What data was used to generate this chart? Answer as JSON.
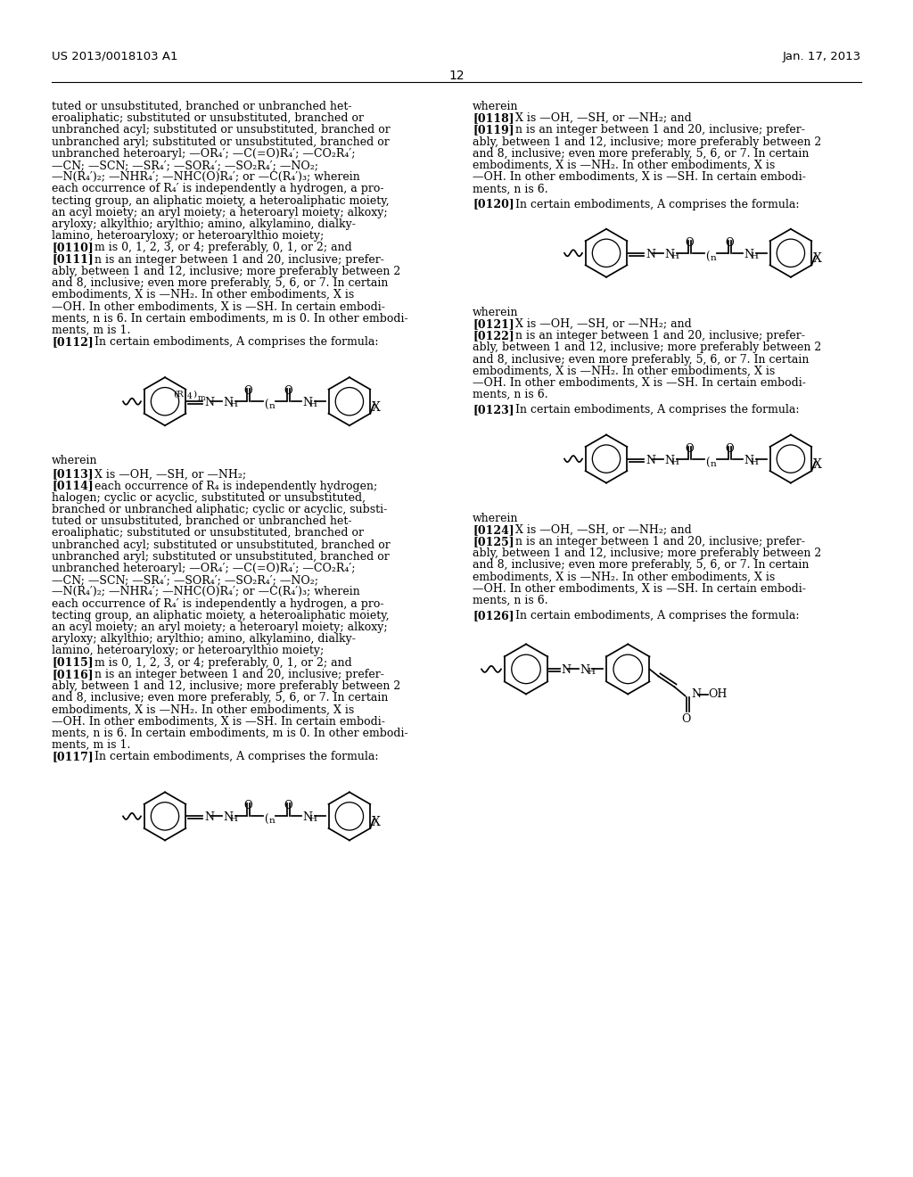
{
  "page_number": "12",
  "patent_number": "US 2013/0018103 A1",
  "patent_date": "Jan. 17, 2013",
  "background_color": "#ffffff",
  "left_col_lines": [
    "tuted or unsubstituted, branched or unbranched het-",
    "eroaliphatic; substituted or unsubstituted, branched or",
    "unbranched acyl; substituted or unsubstituted, branched or",
    "unbranched aryl; substituted or unsubstituted, branched or",
    "unbranched heteroaryl; —OR₄′; —C(=O)R₄′; —CO₂R₄′;",
    "—CN; —SCN; —SR₄′; —SOR₄′; —SO₂R₄′; —NO₂;",
    "—N(R₄′)₂; —NHR₄′; —NHC(O)R₄′; or —C(R₄′)₃; wherein",
    "each occurrence of R₄′ is independently a hydrogen, a pro-",
    "tecting group, an aliphatic moiety, a heteroaliphatic moiety,",
    "an acyl moiety; an aryl moiety; a heteroaryl moiety; alkoxy;",
    "aryloxy; alkylthio; arylthio; amino, alkylamino, dialky-",
    "lamino, heteroaryloxy; or heteroarylthio moiety;",
    "[0110]    m is 0, 1, 2, 3, or 4; preferably, 0, 1, or 2; and",
    "[0111]    n is an integer between 1 and 20, inclusive; prefer-",
    "ably, between 1 and 12, inclusive; more preferably between 2",
    "and 8, inclusive; even more preferably, 5, 6, or 7. In certain",
    "embodiments, X is —NH₂. In other embodiments, X is",
    "—OH. In other embodiments, X is —SH. In certain embodi-",
    "ments, n is 6. In certain embodiments, m is 0. In other embodi-",
    "ments, m is 1.",
    "[0112]    In certain embodiments, A comprises the formula:"
  ],
  "left_col_lower_lines": [
    "wherein",
    "[0113]    X is —OH, —SH, or —NH₂;",
    "[0114]    each occurrence of R₄ is independently hydrogen;",
    "halogen; cyclic or acyclic, substituted or unsubstituted,",
    "branched or unbranched aliphatic; cyclic or acyclic, substi-",
    "tuted or unsubstituted, branched or unbranched het-",
    "eroaliphatic; substituted or unsubstituted, branched or",
    "unbranched acyl; substituted or unsubstituted, branched or",
    "unbranched aryl; substituted or unsubstituted, branched or",
    "unbranched heteroaryl; —OR₄′; —C(=O)R₄′; —CO₂R₄′;",
    "—CN; —SCN; —SR₄′; —SOR₄′; —SO₂R₄′; —NO₂;",
    "—N(R₄′)₂; —NHR₄′; —NHC(O)R₄′; or —C(R₄′)₃; wherein",
    "each occurrence of R₄′ is independently a hydrogen, a pro-",
    "tecting group, an aliphatic moiety, a heteroaliphatic moiety,",
    "an acyl moiety; an aryl moiety; a heteroaryl moiety; alkoxy;",
    "aryloxy; alkylthio; arylthio; amino, alkylamino, dialky-",
    "lamino, heteroaryloxy; or heteroarylthio moiety;",
    "[0115]    m is 0, 1, 2, 3, or 4; preferably, 0, 1, or 2; and",
    "[0116]    n is an integer between 1 and 20, inclusive; prefer-",
    "ably, between 1 and 12, inclusive; more preferably between 2",
    "and 8, inclusive; even more preferably, 5, 6, or 7. In certain",
    "embodiments, X is —NH₂. In other embodiments, X is",
    "—OH. In other embodiments, X is —SH. In certain embodi-",
    "ments, n is 6. In certain embodiments, m is 0. In other embodi-",
    "ments, m is 1.",
    "[0117]    In certain embodiments, A comprises the formula:"
  ],
  "right_col_top_lines": [
    "wherein",
    "[0118]    X is —OH, —SH, or —NH₂; and",
    "[0119]    n is an integer between 1 and 20, inclusive; prefer-",
    "ably, between 1 and 12, inclusive; more preferably between 2",
    "and 8, inclusive; even more preferably, 5, 6, or 7. In certain",
    "embodiments, X is —NH₂. In other embodiments, X is",
    "—OH. In other embodiments, X is —SH. In certain embodi-",
    "ments, n is 6."
  ],
  "right_col_0120_line": "[0120]    In certain embodiments, A comprises the formula:",
  "right_col_after0120_lines": [
    "wherein",
    "[0121]    X is —OH, —SH, or —NH₂; and",
    "[0122]    n is an integer between 1 and 20, inclusive; prefer-",
    "ably, between 1 and 12, inclusive; more preferably between 2",
    "and 8, inclusive; even more preferably, 5, 6, or 7. In certain",
    "embodiments, X is —NH₂. In other embodiments, X is",
    "—OH. In other embodiments, X is —SH. In certain embodi-",
    "ments, n is 6."
  ],
  "right_col_0123_line": "[0123]    In certain embodiments, A comprises the formula:",
  "right_col_after0123_lines": [
    "wherein",
    "[0124]    X is —OH, —SH, or —NH₂; and",
    "[0125]    n is an integer between 1 and 20, inclusive; prefer-",
    "ably, between 1 and 12, inclusive; more preferably between 2",
    "and 8, inclusive; even more preferably, 5, 6, or 7. In certain",
    "embodiments, X is —NH₂. In other embodiments, X is",
    "—OH. In other embodiments, X is —SH. In certain embodi-",
    "ments, n is 6."
  ],
  "right_col_0126_line": "[0126]    In certain embodiments, A comprises the formula:"
}
